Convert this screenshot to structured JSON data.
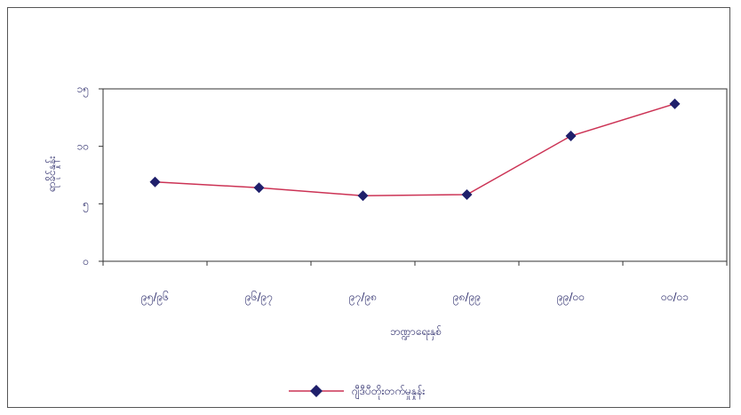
{
  "chart_data": {
    "type": "line",
    "categories": [
      "၉၅/၉၆",
      "၉၆/၉၇",
      "၉၇/၉၈",
      "၉၈/၉၉",
      "၉၉/၀၀",
      "၀၀/၀၁"
    ],
    "series": [
      {
        "name": "ဂျီဒီပီတိုးတက်မှုနှုန်း",
        "values": [
          6.9,
          6.4,
          5.7,
          5.8,
          10.9,
          13.7
        ],
        "color": "#cc3355",
        "marker_color": "#1f1f6b"
      }
    ],
    "title": "",
    "xlabel": "ဘဏ္ဍာရေးနှစ်",
    "ylabel": "ရာခိုင်နှုန်း",
    "ylim": [
      0,
      15
    ],
    "yticks": [
      0,
      5,
      10,
      15
    ],
    "ytick_labels": [
      "၀",
      "၅",
      "၁၀",
      "၁၅"
    ],
    "grid": false,
    "legend_position": "bottom-center"
  }
}
